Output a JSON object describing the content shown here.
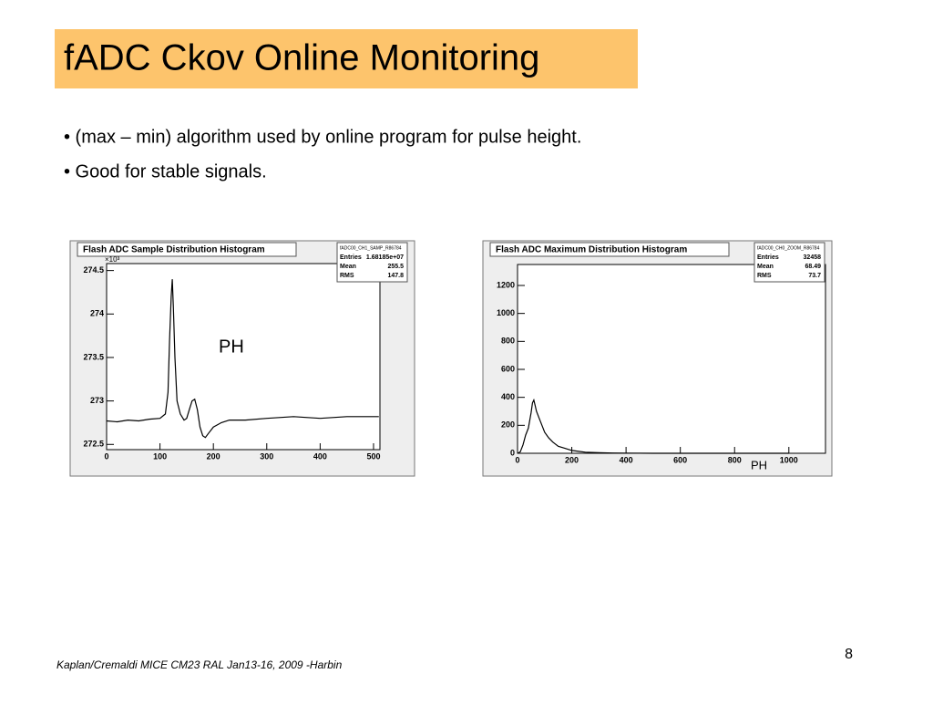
{
  "title": "fADC Ckov Online Monitoring",
  "bullets": [
    "• (max – min) algorithm used by online program for pulse height.",
    "• Good for stable signals."
  ],
  "footer": "Kaplan/Cremaldi MICE CM23  RAL Jan13-16, 2009 -Harbin",
  "page_number": "8",
  "chart_data": [
    {
      "type": "line",
      "title": "Flash ADC Sample Distribution Histogram",
      "color": "#000000",
      "stats": {
        "name": "fADC00_CH1_SAMP_R86784",
        "rows": [
          {
            "label": "Entries",
            "value": "1.68185e+07"
          },
          {
            "label": "Mean",
            "value": "255.5"
          },
          {
            "label": "RMS",
            "value": "147.8"
          }
        ]
      },
      "y_multiplier": "×10³",
      "annotation": "PH",
      "x": [
        0,
        20,
        40,
        60,
        80,
        100,
        110,
        115,
        118,
        121,
        123,
        125,
        128,
        132,
        138,
        145,
        150,
        155,
        160,
        165,
        170,
        175,
        180,
        185,
        190,
        200,
        215,
        230,
        260,
        300,
        350,
        400,
        450,
        500,
        510
      ],
      "values": [
        272.77,
        272.76,
        272.78,
        272.77,
        272.79,
        272.8,
        272.85,
        273.1,
        273.7,
        274.2,
        274.4,
        274.1,
        273.5,
        273.0,
        272.85,
        272.78,
        272.8,
        272.9,
        273.0,
        273.02,
        272.9,
        272.7,
        272.6,
        272.58,
        272.62,
        272.7,
        272.75,
        272.78,
        272.78,
        272.8,
        272.82,
        272.8,
        272.82,
        272.82,
        272.82
      ],
      "xlim": [
        0,
        512
      ],
      "xticks": [
        0,
        100,
        200,
        300,
        400,
        500
      ],
      "ylim": [
        272.44,
        274.58
      ],
      "yticks": [
        272.5,
        273,
        273.5,
        274,
        274.5
      ]
    },
    {
      "type": "line",
      "title": "Flash ADC Maximum Distribution Histogram",
      "color": "#000000",
      "stats": {
        "name": "fADC00_CH0_ZOOM_R86784",
        "rows": [
          {
            "label": "Entries",
            "value": "32458"
          },
          {
            "label": "Mean",
            "value": "68.49"
          },
          {
            "label": "RMS",
            "value": "73.7"
          }
        ]
      },
      "x_label": "PH",
      "x": [
        0,
        10,
        20,
        30,
        40,
        50,
        55,
        60,
        65,
        70,
        80,
        90,
        100,
        115,
        130,
        150,
        175,
        200,
        250,
        300,
        350,
        400,
        500,
        600,
        700,
        800,
        900,
        1000
      ],
      "values": [
        0,
        10,
        60,
        130,
        180,
        290,
        360,
        380,
        340,
        300,
        250,
        200,
        150,
        110,
        80,
        50,
        35,
        20,
        8,
        4,
        2,
        1,
        0,
        0,
        0,
        0,
        0,
        0
      ],
      "xlim": [
        0,
        1135
      ],
      "xticks": [
        0,
        200,
        400,
        600,
        800,
        1000
      ],
      "ylim": [
        0,
        1350
      ],
      "yticks": [
        0,
        200,
        400,
        600,
        800,
        1000,
        1200
      ]
    }
  ]
}
